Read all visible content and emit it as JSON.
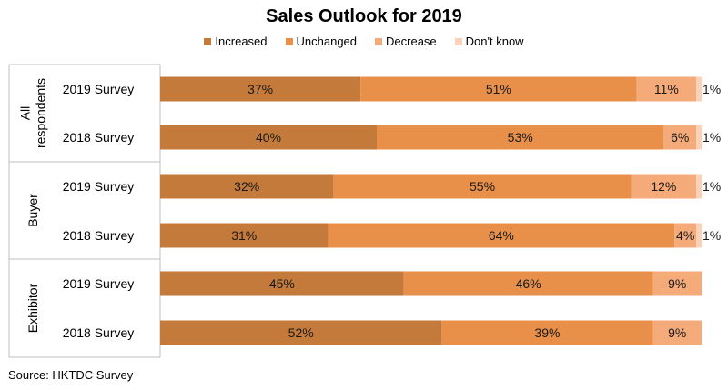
{
  "chart_data": {
    "type": "bar",
    "orientation": "horizontal",
    "stacked": true,
    "title": "Sales Outlook for 2019",
    "legend_position": "top",
    "groups": [
      {
        "label": "All respondents",
        "label_lines": [
          "All",
          "respondents"
        ]
      },
      {
        "label": "Buyer",
        "label_lines": [
          "Buyer"
        ]
      },
      {
        "label": "Exhibitor",
        "label_lines": [
          "Exhibitor"
        ]
      }
    ],
    "categories": [
      {
        "group": 0,
        "label": "2019 Survey"
      },
      {
        "group": 0,
        "label": "2018 Survey"
      },
      {
        "group": 1,
        "label": "2019 Survey"
      },
      {
        "group": 1,
        "label": "2018 Survey"
      },
      {
        "group": 2,
        "label": "2019 Survey"
      },
      {
        "group": 2,
        "label": "2018 Survey"
      }
    ],
    "series": [
      {
        "name": "Increased",
        "color": "#c47a3a",
        "values": [
          37,
          40,
          32,
          31,
          45,
          52
        ],
        "labels": [
          "37%",
          "40%",
          "32%",
          "31%",
          "45%",
          "52%"
        ]
      },
      {
        "name": "Unchanged",
        "color": "#e8904a",
        "values": [
          51,
          53,
          55,
          64,
          46,
          39
        ],
        "labels": [
          "51%",
          "53%",
          "55%",
          "64%",
          "46%",
          "39%"
        ]
      },
      {
        "name": "Decrease",
        "color": "#f5aa7a",
        "values": [
          11,
          6,
          12,
          4,
          9,
          9
        ],
        "labels": [
          "11%",
          "6%",
          "12%",
          "4%",
          "9%",
          "9%"
        ]
      },
      {
        "name": "Don't know",
        "color": "#fbd2b8",
        "values": [
          1,
          1,
          1,
          1,
          0,
          0
        ],
        "labels": [
          "1%",
          "1%",
          "1%",
          "1%",
          "",
          ""
        ]
      }
    ],
    "xlim": [
      0,
      100
    ],
    "grid": false
  },
  "footer": {
    "source": "Source: HKTDC Survey"
  }
}
